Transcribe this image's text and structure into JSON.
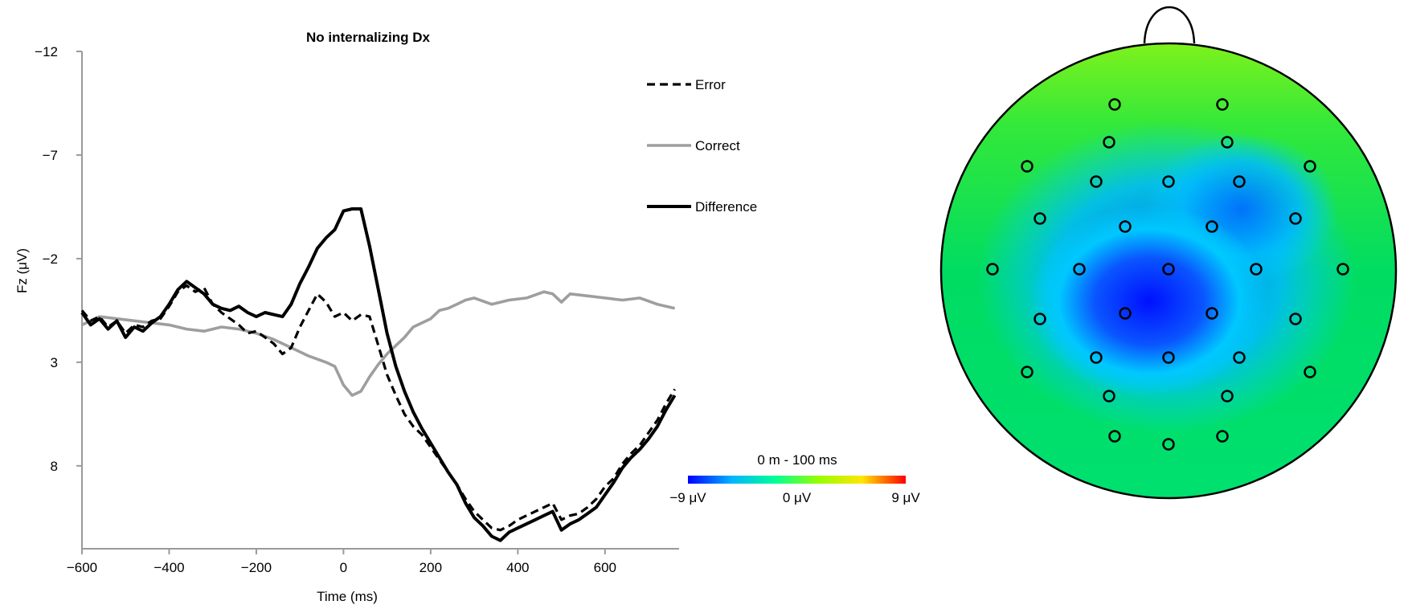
{
  "chart_data": [
    {
      "type": "line",
      "title": "No internalizing Dx",
      "xlabel": "Time (ms)",
      "ylabel": "Fz (μV)",
      "xlim": [
        -600,
        770
      ],
      "ylim": [
        -12,
        12
      ],
      "y_inverted": true,
      "xticks": [
        -600,
        -400,
        -200,
        0,
        200,
        400,
        600
      ],
      "xtick_labels": [
        "−600",
        "−400",
        "−200",
        "0",
        "200",
        "400",
        "600"
      ],
      "yticks": [
        -12,
        -7,
        -2,
        3,
        8
      ],
      "ytick_labels": [
        "−12",
        "−7",
        "−2",
        "3",
        "8"
      ],
      "grid": false,
      "legend_placement": "top-right",
      "series": [
        {
          "name": "Error",
          "color": "#000000",
          "style": "dashed",
          "x": [
            -600,
            -580,
            -560,
            -540,
            -520,
            -500,
            -480,
            -460,
            -440,
            -420,
            -400,
            -380,
            -360,
            -340,
            -320,
            -300,
            -280,
            -260,
            -240,
            -220,
            -200,
            -180,
            -160,
            -140,
            -120,
            -100,
            -80,
            -60,
            -40,
            -20,
            0,
            20,
            40,
            60,
            80,
            100,
            120,
            140,
            160,
            180,
            200,
            220,
            240,
            260,
            280,
            300,
            320,
            340,
            360,
            380,
            400,
            420,
            440,
            460,
            480,
            500,
            520,
            540,
            560,
            580,
            600,
            620,
            640,
            660,
            680,
            700,
            720,
            740,
            760
          ],
          "y": [
            0.5,
            1.0,
            0.8,
            1.3,
            1.0,
            1.6,
            1.2,
            1.3,
            1.0,
            0.9,
            0.3,
            -0.4,
            -0.7,
            -0.4,
            -0.6,
            0.2,
            0.6,
            0.9,
            1.2,
            1.6,
            1.5,
            1.8,
            2.1,
            2.6,
            2.3,
            1.3,
            0.5,
            -0.3,
            0.1,
            0.8,
            0.6,
            1.0,
            0.7,
            0.8,
            2.2,
            3.6,
            4.6,
            5.5,
            6.1,
            6.5,
            7.1,
            7.7,
            8.3,
            8.9,
            9.6,
            10.2,
            10.6,
            11.0,
            11.1,
            10.9,
            10.6,
            10.4,
            10.2,
            10.0,
            9.8,
            10.6,
            10.4,
            10.3,
            10.0,
            9.6,
            9.0,
            8.6,
            7.9,
            7.4,
            7.0,
            6.4,
            5.8,
            5.0,
            4.3
          ]
        },
        {
          "name": "Correct",
          "color": "#9e9e9e",
          "style": "solid",
          "x": [
            -600,
            -560,
            -520,
            -480,
            -440,
            -400,
            -360,
            -320,
            -280,
            -240,
            -200,
            -160,
            -120,
            -80,
            -40,
            -20,
            0,
            20,
            40,
            60,
            80,
            100,
            120,
            140,
            160,
            180,
            200,
            220,
            240,
            260,
            280,
            300,
            340,
            380,
            420,
            460,
            480,
            500,
            520,
            560,
            600,
            640,
            680,
            720,
            760
          ],
          "y": [
            1.2,
            0.8,
            0.9,
            1.0,
            1.1,
            1.2,
            1.4,
            1.5,
            1.3,
            1.4,
            1.6,
            1.9,
            2.3,
            2.7,
            3.0,
            3.2,
            4.1,
            4.6,
            4.4,
            3.7,
            3.1,
            2.6,
            2.2,
            1.8,
            1.3,
            1.1,
            0.9,
            0.5,
            0.4,
            0.2,
            0.0,
            -0.1,
            0.2,
            0.0,
            -0.1,
            -0.4,
            -0.3,
            0.1,
            -0.3,
            -0.2,
            -0.1,
            0.0,
            -0.1,
            0.2,
            0.4
          ]
        },
        {
          "name": "Difference",
          "color": "#000000",
          "style": "solid-thick",
          "x": [
            -600,
            -580,
            -560,
            -540,
            -520,
            -500,
            -480,
            -460,
            -440,
            -420,
            -400,
            -380,
            -360,
            -340,
            -320,
            -300,
            -280,
            -260,
            -240,
            -220,
            -200,
            -180,
            -160,
            -140,
            -120,
            -100,
            -80,
            -60,
            -40,
            -20,
            0,
            20,
            40,
            60,
            80,
            100,
            120,
            140,
            160,
            180,
            200,
            220,
            240,
            260,
            280,
            300,
            320,
            340,
            360,
            380,
            400,
            420,
            440,
            460,
            480,
            500,
            520,
            540,
            560,
            580,
            600,
            620,
            640,
            660,
            680,
            700,
            720,
            740,
            760
          ],
          "y": [
            0.6,
            1.2,
            0.9,
            1.4,
            1.0,
            1.8,
            1.3,
            1.5,
            1.1,
            0.8,
            0.2,
            -0.5,
            -0.9,
            -0.6,
            -0.3,
            0.2,
            0.4,
            0.5,
            0.3,
            0.6,
            0.8,
            0.6,
            0.7,
            0.8,
            0.2,
            -0.8,
            -1.6,
            -2.5,
            -3.0,
            -3.4,
            -4.3,
            -4.4,
            -4.4,
            -2.6,
            -0.5,
            1.6,
            3.2,
            4.4,
            5.4,
            6.2,
            6.9,
            7.6,
            8.3,
            8.9,
            9.8,
            10.5,
            10.9,
            11.4,
            11.6,
            11.2,
            11.0,
            10.8,
            10.6,
            10.4,
            10.2,
            11.1,
            10.8,
            10.6,
            10.3,
            10.0,
            9.4,
            8.8,
            8.1,
            7.6,
            7.2,
            6.7,
            6.1,
            5.3,
            4.6
          ]
        }
      ]
    },
    {
      "type": "heatmap",
      "title": "0 m - 100 ms",
      "colorbar": {
        "min": -9,
        "max": 9,
        "tick_labels": [
          "−9 μV",
          "0 μV",
          "9 μV"
        ],
        "colors": [
          "#0000ff",
          "#00b4ff",
          "#00ff96",
          "#96ff00",
          "#ffe600",
          "#ff0000"
        ]
      },
      "scalp_map": {
        "colors": {
          "outline": "#000000",
          "positive_peak": "#0010ff",
          "mid": "#00d2ff",
          "background": "#00e060",
          "front": "#5ef02a"
        },
        "electrode_count": 32
      }
    }
  ]
}
